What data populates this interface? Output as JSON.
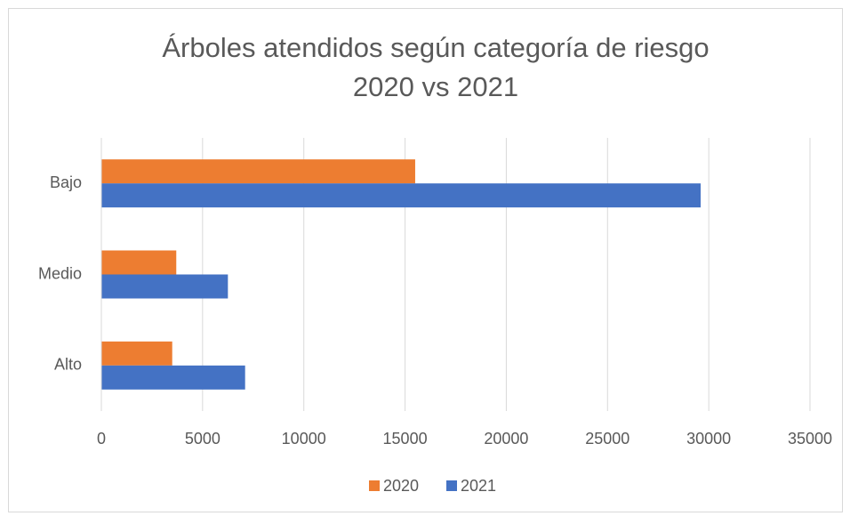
{
  "chart_data": {
    "type": "hbar",
    "title": [
      "Árboles atendidos según categoría de riesgo",
      "2020 vs 2021"
    ],
    "categories": [
      "Bajo",
      "Medio",
      "Alto"
    ],
    "series": [
      {
        "name": "2020",
        "color": "#ed7d31",
        "values": [
          15500,
          3700,
          3500
        ]
      },
      {
        "name": "2021",
        "color": "#4472c4",
        "values": [
          29600,
          6250,
          7100
        ]
      }
    ],
    "xlim": [
      0,
      35000
    ],
    "xticks": [
      0,
      5000,
      10000,
      15000,
      20000,
      25000,
      30000,
      35000
    ],
    "grid": true,
    "legend": "bottom"
  }
}
